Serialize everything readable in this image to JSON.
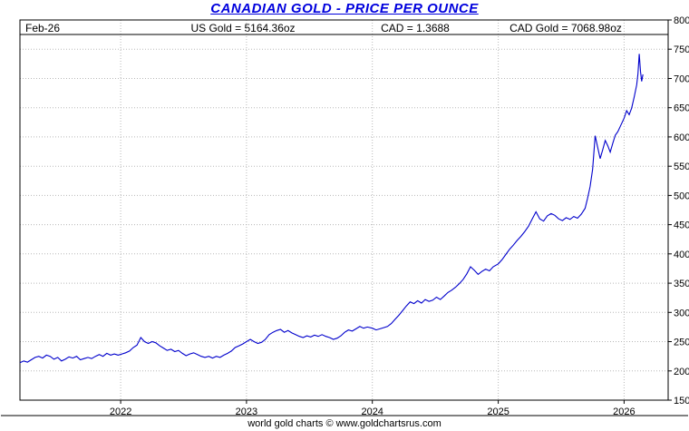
{
  "title": "CANADIAN GOLD - PRICE PER OUNCE",
  "header": {
    "date_label": "Feb-26",
    "us_gold": "US Gold = 5164.36oz",
    "cad_rate": "CAD = 1.3688",
    "cad_gold": "CAD Gold = 7068.98oz"
  },
  "footer": {
    "credit": "world gold charts © www.goldchartsrus.com"
  },
  "colors": {
    "line": "#0000cc",
    "title": "#0000dd",
    "grid": "#b8b8b8",
    "axis": "#000000"
  },
  "chart_data": {
    "type": "line",
    "title": "CANADIAN GOLD - PRICE PER OUNCE",
    "xlabel": "",
    "ylabel": "",
    "xlim": [
      2021.2,
      2026.35
    ],
    "ylim": [
      1500,
      8000
    ],
    "grid": true,
    "legend": "none",
    "y_ticks": [
      1500,
      2000,
      2500,
      3000,
      3500,
      4000,
      4500,
      5000,
      5500,
      6000,
      6500,
      7000,
      7500,
      8000
    ],
    "x_ticks": [
      2022,
      2023,
      2024,
      2025,
      2026
    ],
    "x_tick_labels": [
      "2022",
      "2023",
      "2024",
      "2025",
      "2026"
    ],
    "series": [
      {
        "name": "CAD Gold price per ounce",
        "points": [
          [
            2021.2,
            2140
          ],
          [
            2021.23,
            2170
          ],
          [
            2021.26,
            2150
          ],
          [
            2021.29,
            2190
          ],
          [
            2021.32,
            2230
          ],
          [
            2021.35,
            2250
          ],
          [
            2021.38,
            2220
          ],
          [
            2021.41,
            2270
          ],
          [
            2021.44,
            2250
          ],
          [
            2021.47,
            2200
          ],
          [
            2021.5,
            2230
          ],
          [
            2021.53,
            2170
          ],
          [
            2021.56,
            2200
          ],
          [
            2021.59,
            2240
          ],
          [
            2021.62,
            2220
          ],
          [
            2021.65,
            2250
          ],
          [
            2021.68,
            2190
          ],
          [
            2021.71,
            2210
          ],
          [
            2021.74,
            2230
          ],
          [
            2021.77,
            2210
          ],
          [
            2021.8,
            2250
          ],
          [
            2021.83,
            2280
          ],
          [
            2021.86,
            2250
          ],
          [
            2021.89,
            2300
          ],
          [
            2021.92,
            2270
          ],
          [
            2021.95,
            2290
          ],
          [
            2021.98,
            2270
          ],
          [
            2022.01,
            2290
          ],
          [
            2022.04,
            2310
          ],
          [
            2022.07,
            2340
          ],
          [
            2022.1,
            2400
          ],
          [
            2022.13,
            2440
          ],
          [
            2022.16,
            2570
          ],
          [
            2022.19,
            2500
          ],
          [
            2022.22,
            2470
          ],
          [
            2022.25,
            2500
          ],
          [
            2022.28,
            2480
          ],
          [
            2022.31,
            2430
          ],
          [
            2022.34,
            2390
          ],
          [
            2022.37,
            2350
          ],
          [
            2022.4,
            2370
          ],
          [
            2022.43,
            2330
          ],
          [
            2022.46,
            2350
          ],
          [
            2022.49,
            2300
          ],
          [
            2022.52,
            2260
          ],
          [
            2022.55,
            2290
          ],
          [
            2022.58,
            2310
          ],
          [
            2022.61,
            2280
          ],
          [
            2022.64,
            2250
          ],
          [
            2022.67,
            2230
          ],
          [
            2022.7,
            2250
          ],
          [
            2022.73,
            2220
          ],
          [
            2022.76,
            2250
          ],
          [
            2022.79,
            2230
          ],
          [
            2022.82,
            2270
          ],
          [
            2022.85,
            2300
          ],
          [
            2022.88,
            2340
          ],
          [
            2022.91,
            2400
          ],
          [
            2022.94,
            2430
          ],
          [
            2022.97,
            2460
          ],
          [
            2023.0,
            2500
          ],
          [
            2023.03,
            2540
          ],
          [
            2023.06,
            2500
          ],
          [
            2023.09,
            2470
          ],
          [
            2023.12,
            2490
          ],
          [
            2023.15,
            2540
          ],
          [
            2023.18,
            2620
          ],
          [
            2023.21,
            2660
          ],
          [
            2023.24,
            2690
          ],
          [
            2023.27,
            2710
          ],
          [
            2023.3,
            2660
          ],
          [
            2023.33,
            2690
          ],
          [
            2023.36,
            2650
          ],
          [
            2023.39,
            2620
          ],
          [
            2023.42,
            2590
          ],
          [
            2023.45,
            2570
          ],
          [
            2023.48,
            2600
          ],
          [
            2023.51,
            2580
          ],
          [
            2023.54,
            2610
          ],
          [
            2023.57,
            2590
          ],
          [
            2023.6,
            2620
          ],
          [
            2023.63,
            2590
          ],
          [
            2023.66,
            2570
          ],
          [
            2023.69,
            2540
          ],
          [
            2023.72,
            2560
          ],
          [
            2023.75,
            2600
          ],
          [
            2023.78,
            2660
          ],
          [
            2023.81,
            2700
          ],
          [
            2023.84,
            2680
          ],
          [
            2023.87,
            2720
          ],
          [
            2023.9,
            2760
          ],
          [
            2023.93,
            2730
          ],
          [
            2023.96,
            2750
          ],
          [
            2024.0,
            2730
          ],
          [
            2024.03,
            2700
          ],
          [
            2024.06,
            2720
          ],
          [
            2024.09,
            2740
          ],
          [
            2024.12,
            2760
          ],
          [
            2024.15,
            2810
          ],
          [
            2024.18,
            2880
          ],
          [
            2024.21,
            2950
          ],
          [
            2024.24,
            3030
          ],
          [
            2024.27,
            3110
          ],
          [
            2024.3,
            3180
          ],
          [
            2024.33,
            3150
          ],
          [
            2024.36,
            3200
          ],
          [
            2024.39,
            3160
          ],
          [
            2024.42,
            3220
          ],
          [
            2024.45,
            3190
          ],
          [
            2024.48,
            3210
          ],
          [
            2024.51,
            3260
          ],
          [
            2024.54,
            3220
          ],
          [
            2024.57,
            3280
          ],
          [
            2024.6,
            3340
          ],
          [
            2024.63,
            3380
          ],
          [
            2024.66,
            3430
          ],
          [
            2024.69,
            3490
          ],
          [
            2024.72,
            3560
          ],
          [
            2024.75,
            3660
          ],
          [
            2024.78,
            3780
          ],
          [
            2024.81,
            3720
          ],
          [
            2024.84,
            3650
          ],
          [
            2024.87,
            3700
          ],
          [
            2024.9,
            3740
          ],
          [
            2024.93,
            3710
          ],
          [
            2024.96,
            3780
          ],
          [
            2025.0,
            3830
          ],
          [
            2025.03,
            3900
          ],
          [
            2025.06,
            3990
          ],
          [
            2025.09,
            4080
          ],
          [
            2025.12,
            4150
          ],
          [
            2025.15,
            4230
          ],
          [
            2025.18,
            4300
          ],
          [
            2025.21,
            4380
          ],
          [
            2025.24,
            4470
          ],
          [
            2025.27,
            4600
          ],
          [
            2025.3,
            4720
          ],
          [
            2025.33,
            4600
          ],
          [
            2025.36,
            4560
          ],
          [
            2025.39,
            4650
          ],
          [
            2025.42,
            4690
          ],
          [
            2025.45,
            4660
          ],
          [
            2025.48,
            4600
          ],
          [
            2025.51,
            4570
          ],
          [
            2025.54,
            4620
          ],
          [
            2025.57,
            4590
          ],
          [
            2025.6,
            4640
          ],
          [
            2025.63,
            4610
          ],
          [
            2025.66,
            4680
          ],
          [
            2025.69,
            4780
          ],
          [
            2025.71,
            4950
          ],
          [
            2025.73,
            5150
          ],
          [
            2025.75,
            5450
          ],
          [
            2025.77,
            6020
          ],
          [
            2025.79,
            5820
          ],
          [
            2025.81,
            5630
          ],
          [
            2025.83,
            5780
          ],
          [
            2025.85,
            5940
          ],
          [
            2025.87,
            5850
          ],
          [
            2025.89,
            5740
          ],
          [
            2025.91,
            5890
          ],
          [
            2025.93,
            6030
          ],
          [
            2025.95,
            6090
          ],
          [
            2025.97,
            6180
          ],
          [
            2026.0,
            6320
          ],
          [
            2026.02,
            6450
          ],
          [
            2026.04,
            6380
          ],
          [
            2026.06,
            6490
          ],
          [
            2026.08,
            6680
          ],
          [
            2026.1,
            6890
          ],
          [
            2026.11,
            7080
          ],
          [
            2026.12,
            7420
          ],
          [
            2026.13,
            7120
          ],
          [
            2026.14,
            6950
          ],
          [
            2026.15,
            7069
          ]
        ]
      }
    ]
  }
}
